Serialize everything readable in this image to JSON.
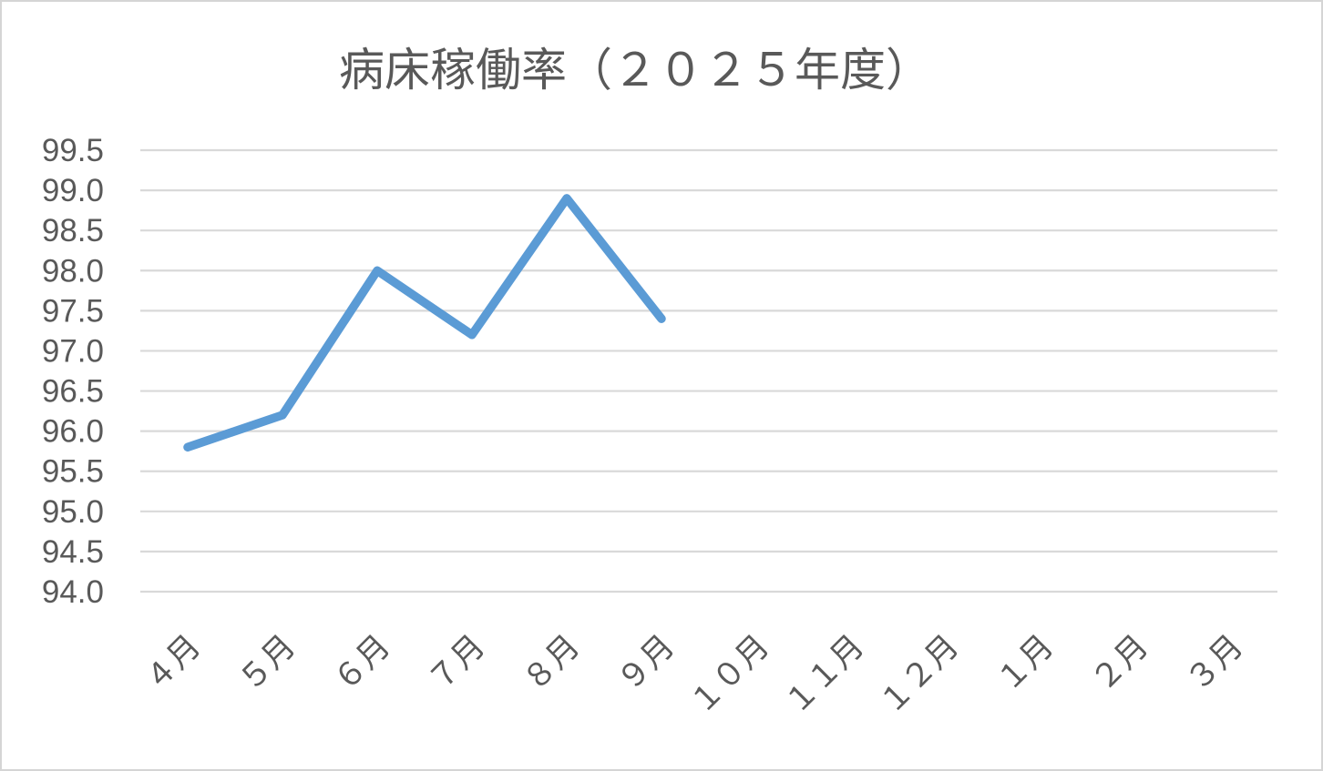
{
  "chart_data": {
    "type": "line",
    "title": "病床稼働率（２０２５年度）",
    "categories": [
      "４月",
      "５月",
      "６月",
      "７月",
      "８月",
      "９月",
      "１０月",
      "１１月",
      "１２月",
      "１月",
      "２月",
      "３月"
    ],
    "values": [
      95.8,
      96.2,
      98.0,
      97.2,
      98.9,
      97.4,
      null,
      null,
      null,
      null,
      null,
      null
    ],
    "xlabel": "",
    "ylabel": "",
    "ylim": [
      94.0,
      99.5
    ],
    "ytick_step": 0.5,
    "ytick_labels": [
      "99.5",
      "99.0",
      "98.5",
      "98.0",
      "97.5",
      "97.0",
      "96.5",
      "96.0",
      "95.5",
      "95.0",
      "94.5",
      "94.0"
    ],
    "grid": true,
    "legend_position": "none",
    "x_tick_rotation": 45,
    "colors": {
      "line": "#5B9BD5",
      "gridline": "#D9D9D9",
      "text": "#595959",
      "frame_border": "#D5D5D5",
      "background": "#FFFFFF"
    }
  }
}
